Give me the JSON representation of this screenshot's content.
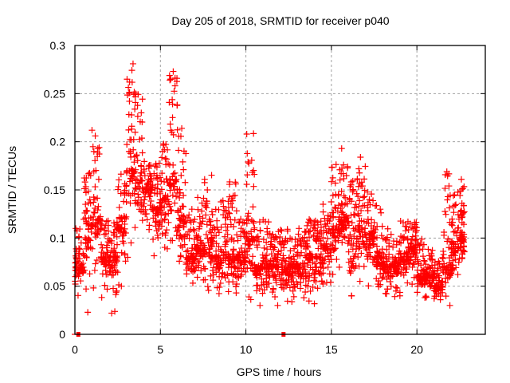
{
  "chart_data": {
    "type": "scatter",
    "title": "Day 205 of 2018, SRMTID for receiver p040",
    "xlabel": "GPS time / hours",
    "ylabel": "SRMTID / TECUs",
    "xlim": [
      0,
      24
    ],
    "ylim": [
      0,
      0.3
    ],
    "xticks": [
      0,
      5,
      10,
      15,
      20
    ],
    "xtick_labels": [
      "0",
      "5",
      "10",
      "15",
      "20"
    ],
    "yticks": [
      0,
      0.05,
      0.1,
      0.15,
      0.2,
      0.25,
      0.3
    ],
    "ytick_labels": [
      "0",
      "0.05",
      "0.1",
      "0.15",
      "0.2",
      "0.25",
      "0.3"
    ],
    "grid": true,
    "marker": "plus",
    "color": "#ff0000",
    "legend": "none",
    "zero_markers": [
      [
        0.2,
        0.0
      ],
      [
        12.2,
        0.0
      ]
    ],
    "series": [
      {
        "name": "SRMTID p040",
        "envelope_note": "dense cloud approximated by per-half-hour bands [hour_start, hour_end, ymin, ymax, typical]",
        "bands": [
          [
            0.0,
            0.5,
            0.03,
            0.11,
            0.07
          ],
          [
            0.5,
            1.0,
            0.02,
            0.17,
            0.1
          ],
          [
            1.0,
            1.5,
            0.04,
            0.21,
            0.12
          ],
          [
            1.5,
            2.0,
            0.03,
            0.12,
            0.08
          ],
          [
            2.0,
            2.5,
            0.02,
            0.13,
            0.08
          ],
          [
            2.5,
            3.0,
            0.05,
            0.17,
            0.11
          ],
          [
            3.0,
            3.5,
            0.08,
            0.28,
            0.17
          ],
          [
            3.5,
            4.0,
            0.1,
            0.25,
            0.16
          ],
          [
            4.0,
            4.5,
            0.1,
            0.18,
            0.15
          ],
          [
            4.5,
            5.0,
            0.07,
            0.18,
            0.13
          ],
          [
            5.0,
            5.5,
            0.08,
            0.2,
            0.14
          ],
          [
            5.5,
            6.0,
            0.06,
            0.27,
            0.16
          ],
          [
            6.0,
            6.5,
            0.05,
            0.22,
            0.12
          ],
          [
            6.5,
            7.0,
            0.05,
            0.13,
            0.08
          ],
          [
            7.0,
            7.5,
            0.05,
            0.16,
            0.09
          ],
          [
            7.5,
            8.0,
            0.04,
            0.17,
            0.09
          ],
          [
            8.0,
            8.5,
            0.04,
            0.13,
            0.08
          ],
          [
            8.5,
            9.0,
            0.03,
            0.14,
            0.08
          ],
          [
            9.0,
            9.5,
            0.03,
            0.16,
            0.08
          ],
          [
            9.5,
            10.0,
            0.04,
            0.12,
            0.08
          ],
          [
            10.0,
            10.5,
            0.03,
            0.21,
            0.1
          ],
          [
            10.5,
            11.0,
            0.03,
            0.13,
            0.07
          ],
          [
            11.0,
            11.5,
            0.02,
            0.12,
            0.07
          ],
          [
            11.5,
            12.0,
            0.03,
            0.11,
            0.07
          ],
          [
            12.0,
            12.5,
            0.02,
            0.11,
            0.07
          ],
          [
            12.5,
            13.0,
            0.03,
            0.1,
            0.07
          ],
          [
            13.0,
            13.5,
            0.03,
            0.11,
            0.07
          ],
          [
            13.5,
            14.0,
            0.03,
            0.12,
            0.08
          ],
          [
            14.0,
            14.5,
            0.03,
            0.12,
            0.08
          ],
          [
            14.5,
            15.0,
            0.04,
            0.14,
            0.09
          ],
          [
            15.0,
            15.5,
            0.05,
            0.19,
            0.11
          ],
          [
            15.5,
            16.0,
            0.06,
            0.19,
            0.12
          ],
          [
            16.0,
            16.5,
            0.04,
            0.16,
            0.1
          ],
          [
            16.5,
            17.0,
            0.04,
            0.18,
            0.11
          ],
          [
            17.0,
            17.5,
            0.05,
            0.15,
            0.1
          ],
          [
            17.5,
            18.0,
            0.04,
            0.14,
            0.08
          ],
          [
            18.0,
            18.5,
            0.03,
            0.11,
            0.07
          ],
          [
            18.5,
            19.0,
            0.03,
            0.1,
            0.07
          ],
          [
            19.0,
            19.5,
            0.04,
            0.12,
            0.08
          ],
          [
            19.5,
            20.0,
            0.05,
            0.12,
            0.09
          ],
          [
            20.0,
            20.5,
            0.03,
            0.1,
            0.06
          ],
          [
            20.5,
            21.0,
            0.03,
            0.09,
            0.06
          ],
          [
            21.0,
            21.5,
            0.03,
            0.08,
            0.05
          ],
          [
            21.5,
            22.0,
            0.03,
            0.17,
            0.07
          ],
          [
            22.0,
            22.5,
            0.05,
            0.15,
            0.09
          ],
          [
            22.5,
            22.8,
            0.06,
            0.16,
            0.1
          ]
        ],
        "outliers": [
          [
            1.0,
            0.212
          ],
          [
            3.4,
            0.281
          ],
          [
            3.05,
            0.265
          ],
          [
            3.2,
            0.262
          ],
          [
            5.75,
            0.273
          ],
          [
            5.6,
            0.265
          ],
          [
            10.05,
            0.208
          ],
          [
            15.6,
            0.193
          ],
          [
            16.7,
            0.184
          ],
          [
            21.75,
            0.169
          ],
          [
            22.6,
            0.161
          ],
          [
            2.15,
            0.022
          ],
          [
            2.45,
            0.045
          ]
        ]
      }
    ]
  }
}
